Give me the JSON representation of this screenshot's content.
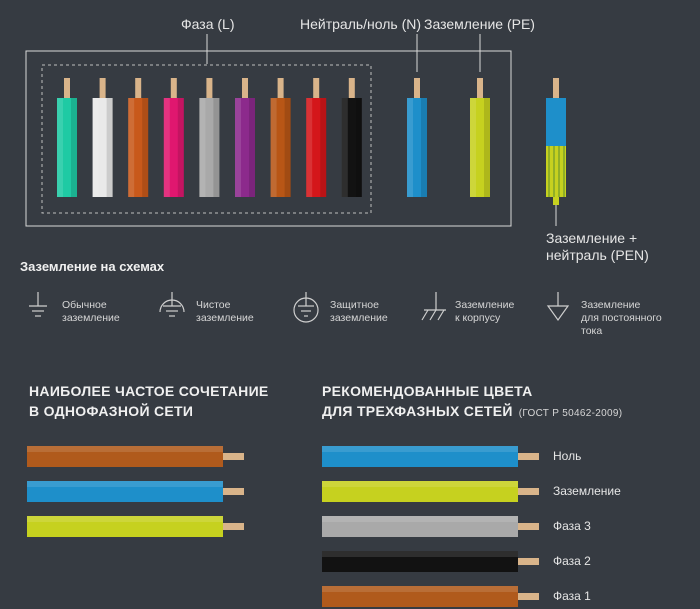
{
  "top_labels": {
    "phase": "Фаза (L)",
    "neutral": "Нейтраль/ноль (N)",
    "ground": "Заземление (PE)",
    "pen_line1": "Заземление +",
    "pen_line2": "нейтраль (PEN)"
  },
  "phase_wire_colors": [
    "#1fcaa4",
    "#e9e9e9",
    "#c8591b",
    "#e0176f",
    "#a9a9a9",
    "#8c2a8c",
    "#b85616",
    "#d4161a",
    "#121212"
  ],
  "neutral_wire_color": "#1e8fca",
  "ground_wire_color": "#c6d11f",
  "pen_wire_colors": [
    "#1e8fca",
    "#c6d11f"
  ],
  "symbols_title": "Заземление на схемах",
  "symbols": [
    {
      "icon": "ground-icon",
      "line1": "Обычное",
      "line2": "заземление",
      "line3": ""
    },
    {
      "icon": "clean-ground-icon",
      "line1": "Чистое",
      "line2": "заземление",
      "line3": ""
    },
    {
      "icon": "protective-ground-icon",
      "line1": "Защитное",
      "line2": "заземление",
      "line3": ""
    },
    {
      "icon": "chassis-ground-icon",
      "line1": "Заземление",
      "line2": "к корпусу",
      "line3": ""
    },
    {
      "icon": "dc-ground-icon",
      "line1": "Заземление",
      "line2": "для постоянного",
      "line3": "тока"
    }
  ],
  "single_phase": {
    "title_line1": "НАИБОЛЕЕ ЧАСТОЕ СОЧЕТАНИЕ",
    "title_line2": "В ОДНОФАЗНОЙ СЕТИ",
    "wire_colors": [
      "#b05a1c",
      "#1e8fca",
      "#c6d11f"
    ]
  },
  "three_phase": {
    "title_line1": "РЕКОМЕНДОВАННЫЕ ЦВЕТА",
    "title_line2": "ДЛЯ ТРЕХФАЗНЫХ СЕТЕЙ",
    "standard": "(ГОСТ Р 50462-2009)",
    "wires": [
      {
        "color": "#1e8fca",
        "label": "Ноль"
      },
      {
        "color": "#c6d11f",
        "label": "Заземление"
      },
      {
        "color": "#a9a9a9",
        "label": "Фаза 3"
      },
      {
        "color": "#121212",
        "label": "Фаза 2"
      },
      {
        "color": "#b05a1c",
        "label": "Фаза 1"
      }
    ]
  },
  "colors": {
    "background": "#363b42",
    "outline": "#d8d8d8",
    "copper": "#d9b48a"
  }
}
